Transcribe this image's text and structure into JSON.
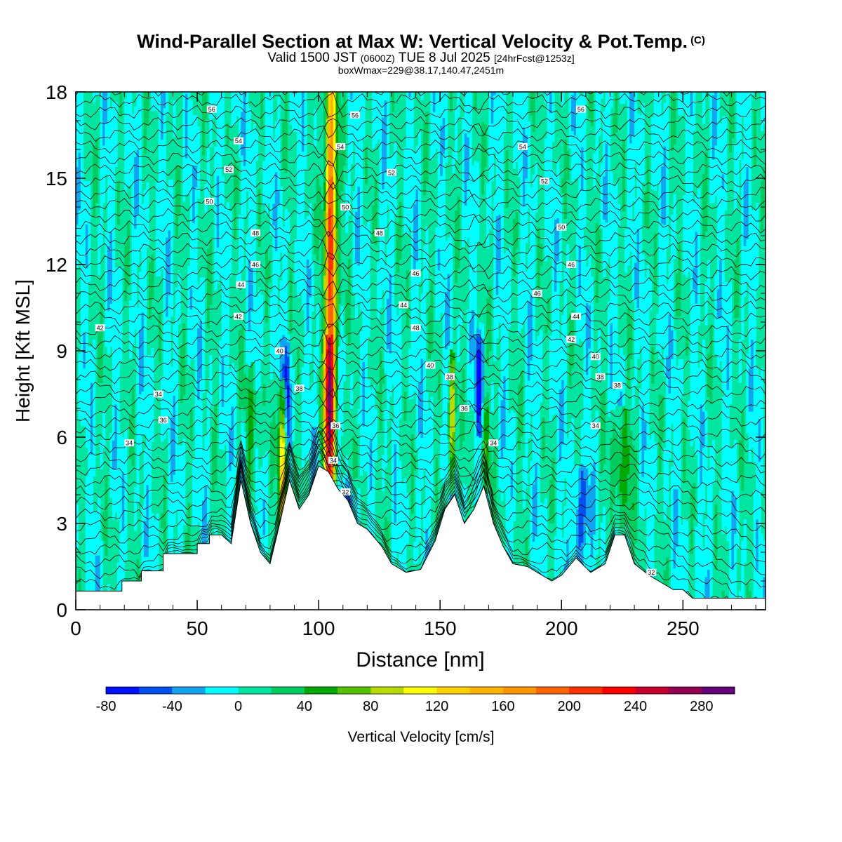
{
  "header": {
    "title": "Wind-Parallel Section at Max W: Vertical Velocity & Pot.Temp.",
    "copyright": "(C)",
    "valid_prefix": "Valid 1500 JST",
    "valid_utc": "(0600Z)",
    "valid_date": "TUE 8 Jul 2025",
    "forecast": "[24hrFcst@1253z]",
    "box_info": "boxWmax=229@38.17,140.47,2451m"
  },
  "colorbar": {
    "label": "Vertical Velocity [cm/s]",
    "ticks": [
      "-80",
      "-40",
      "0",
      "40",
      "80",
      "120",
      "160",
      "200",
      "240",
      "280"
    ],
    "levels": [
      -80,
      -60,
      -40,
      -20,
      0,
      20,
      40,
      60,
      80,
      100,
      120,
      140,
      160,
      180,
      200,
      220,
      240,
      260,
      280,
      300
    ],
    "colors": [
      "#0010ff",
      "#0050f0",
      "#12a4f0",
      "#00ffff",
      "#00e6a0",
      "#00cc60",
      "#00a800",
      "#54c200",
      "#b8dc00",
      "#ffff00",
      "#ffd200",
      "#ffb400",
      "#ff9600",
      "#ff6400",
      "#ff3000",
      "#ff0000",
      "#c8002e",
      "#960050",
      "#64007a"
    ]
  },
  "chart_data": {
    "type": "heatmap",
    "xlabel": "Distance [nm]",
    "ylabel": "Height [Kft MSL]",
    "xlim": [
      0,
      284
    ],
    "ylim": [
      0,
      18
    ],
    "xticks": [
      "0",
      "50",
      "100",
      "150",
      "200",
      "250"
    ],
    "yticks": [
      "0",
      "3",
      "6",
      "9",
      "12",
      "15",
      "18"
    ],
    "background_value": 0,
    "terrain_profile": [
      [
        0,
        0.65
      ],
      [
        19,
        0.65
      ],
      [
        19,
        1.0
      ],
      [
        27,
        1.0
      ],
      [
        27,
        1.35
      ],
      [
        36,
        1.35
      ],
      [
        36,
        1.95
      ],
      [
        50,
        1.95
      ],
      [
        50,
        2.3
      ],
      [
        55,
        2.3
      ],
      [
        55,
        2.6
      ],
      [
        60,
        2.6
      ],
      [
        64,
        2.3
      ],
      [
        68,
        4.5
      ],
      [
        72,
        3.0
      ],
      [
        76,
        2.0
      ],
      [
        80,
        1.6
      ],
      [
        84,
        3.0
      ],
      [
        88,
        4.5
      ],
      [
        92,
        3.5
      ],
      [
        96,
        4.0
      ],
      [
        100,
        5.0
      ],
      [
        104,
        4.8
      ],
      [
        108,
        4.2
      ],
      [
        112,
        3.8
      ],
      [
        116,
        3.0
      ],
      [
        120,
        2.8
      ],
      [
        126,
        2.2
      ],
      [
        130,
        1.6
      ],
      [
        136,
        1.3
      ],
      [
        142,
        1.4
      ],
      [
        148,
        2.4
      ],
      [
        152,
        3.5
      ],
      [
        156,
        4.0
      ],
      [
        160,
        3.0
      ],
      [
        164,
        3.5
      ],
      [
        168,
        4.3
      ],
      [
        172,
        3.0
      ],
      [
        176,
        2.2
      ],
      [
        180,
        1.6
      ],
      [
        186,
        1.5
      ],
      [
        190,
        1.3
      ],
      [
        196,
        1.0
      ],
      [
        200,
        1.2
      ],
      [
        206,
        1.8
      ],
      [
        212,
        1.3
      ],
      [
        218,
        1.6
      ],
      [
        222,
        2.6
      ],
      [
        226,
        2.6
      ],
      [
        230,
        1.6
      ],
      [
        236,
        1.2
      ],
      [
        240,
        1.0
      ],
      [
        246,
        0.7
      ],
      [
        250,
        0.7
      ],
      [
        254,
        0.4
      ],
      [
        266,
        0.4
      ],
      [
        284,
        0.4
      ]
    ],
    "features": [
      {
        "x": 105,
        "z0": 4.8,
        "z1": 17.8,
        "w": 1.6,
        "peak": 229,
        "sigma_z": 6.0,
        "zc": 12.0
      },
      {
        "x": 104,
        "z0": 4.8,
        "z1": 9.0,
        "w": 1.4,
        "peak": 140,
        "sigma_z": 3.0,
        "zc": 6.5
      },
      {
        "x": 85,
        "z0": 1.8,
        "z1": 7.5,
        "w": 1.2,
        "peak": 135,
        "sigma_z": 3.0,
        "zc": 4.5
      },
      {
        "x": 87,
        "z0": 6.0,
        "z1": 9.0,
        "w": 0.9,
        "peak": -80,
        "sigma_z": 1.5,
        "zc": 7.5
      },
      {
        "x": 155,
        "z0": 4.5,
        "z1": 8.5,
        "w": 0.9,
        "peak": 110,
        "sigma_z": 2.0,
        "zc": 6.5
      },
      {
        "x": 166,
        "z0": 6.5,
        "z1": 9.2,
        "w": 1.0,
        "peak": -70,
        "sigma_z": 1.5,
        "zc": 8.0
      },
      {
        "x": 169,
        "z0": 4.5,
        "z1": 7.0,
        "w": 1.0,
        "peak": 60,
        "sigma_z": 1.5,
        "zc": 5.5
      },
      {
        "x": 208,
        "z0": 2.0,
        "z1": 4.5,
        "w": 2.0,
        "peak": -60,
        "sigma_z": 1.5,
        "zc": 3.0
      },
      {
        "x": 225,
        "z0": 3.0,
        "z1": 6.5,
        "w": 3.0,
        "peak": 50,
        "sigma_z": 2.0,
        "zc": 5.0
      },
      {
        "x": 72,
        "z0": 4.0,
        "z1": 8.0,
        "w": 2.0,
        "peak": 50,
        "sigma_z": 2.0,
        "zc": 6.0
      },
      {
        "x": 69,
        "z0": 2.5,
        "z1": 6.5,
        "w": 1.2,
        "peak": -40,
        "sigma_z": 2.0,
        "zc": 4.0
      },
      {
        "x": 113,
        "z0": 2.5,
        "z1": 4.0,
        "w": 2.0,
        "peak": -50,
        "sigma_z": 1.0,
        "zc": 3.2
      }
    ],
    "theta_contours": {
      "units": "C",
      "labels": [
        {
          "x": 56,
          "z": 17.4,
          "v": "56"
        },
        {
          "x": 115,
          "z": 17.2,
          "v": "56"
        },
        {
          "x": 208,
          "z": 17.4,
          "v": "56"
        },
        {
          "x": 67,
          "z": 16.3,
          "v": "54"
        },
        {
          "x": 109,
          "z": 16.1,
          "v": "54"
        },
        {
          "x": 184,
          "z": 16.1,
          "v": "54"
        },
        {
          "x": 63,
          "z": 15.3,
          "v": "52"
        },
        {
          "x": 130,
          "z": 15.2,
          "v": "52"
        },
        {
          "x": 193,
          "z": 14.9,
          "v": "52"
        },
        {
          "x": 55,
          "z": 14.2,
          "v": "50"
        },
        {
          "x": 111,
          "z": 14.0,
          "v": "50"
        },
        {
          "x": 200,
          "z": 13.3,
          "v": "50"
        },
        {
          "x": 74,
          "z": 13.1,
          "v": "48"
        },
        {
          "x": 125,
          "z": 13.1,
          "v": "48"
        },
        {
          "x": 74,
          "z": 12.0,
          "v": "46"
        },
        {
          "x": 140,
          "z": 11.7,
          "v": "46"
        },
        {
          "x": 204,
          "z": 12.0,
          "v": "46"
        },
        {
          "x": 68,
          "z": 11.3,
          "v": "44"
        },
        {
          "x": 135,
          "z": 10.6,
          "v": "44"
        },
        {
          "x": 190,
          "z": 11.0,
          "v": "46"
        },
        {
          "x": 10,
          "z": 9.8,
          "v": "42"
        },
        {
          "x": 67,
          "z": 10.2,
          "v": "42"
        },
        {
          "x": 140,
          "z": 9.8,
          "v": "48"
        },
        {
          "x": 206,
          "z": 10.2,
          "v": "44"
        },
        {
          "x": 84,
          "z": 9.0,
          "v": "40"
        },
        {
          "x": 146,
          "z": 8.5,
          "v": "40"
        },
        {
          "x": 204,
          "z": 9.4,
          "v": "42"
        },
        {
          "x": 214,
          "z": 8.8,
          "v": "40"
        },
        {
          "x": 92,
          "z": 7.7,
          "v": "38"
        },
        {
          "x": 154,
          "z": 8.1,
          "v": "38"
        },
        {
          "x": 216,
          "z": 8.1,
          "v": "38"
        },
        {
          "x": 34,
          "z": 7.5,
          "v": "34"
        },
        {
          "x": 223,
          "z": 7.8,
          "v": "38"
        },
        {
          "x": 36,
          "z": 6.6,
          "v": "36"
        },
        {
          "x": 160,
          "z": 7.0,
          "v": "36"
        },
        {
          "x": 107,
          "z": 6.4,
          "v": "36"
        },
        {
          "x": 214,
          "z": 6.4,
          "v": "34"
        },
        {
          "x": 22,
          "z": 5.8,
          "v": "34"
        },
        {
          "x": 172,
          "z": 5.8,
          "v": "34"
        },
        {
          "x": 106,
          "z": 5.2,
          "v": "34"
        },
        {
          "x": 111,
          "z": 4.1,
          "v": "32"
        },
        {
          "x": 237,
          "z": 1.3,
          "v": "32"
        }
      ]
    }
  }
}
